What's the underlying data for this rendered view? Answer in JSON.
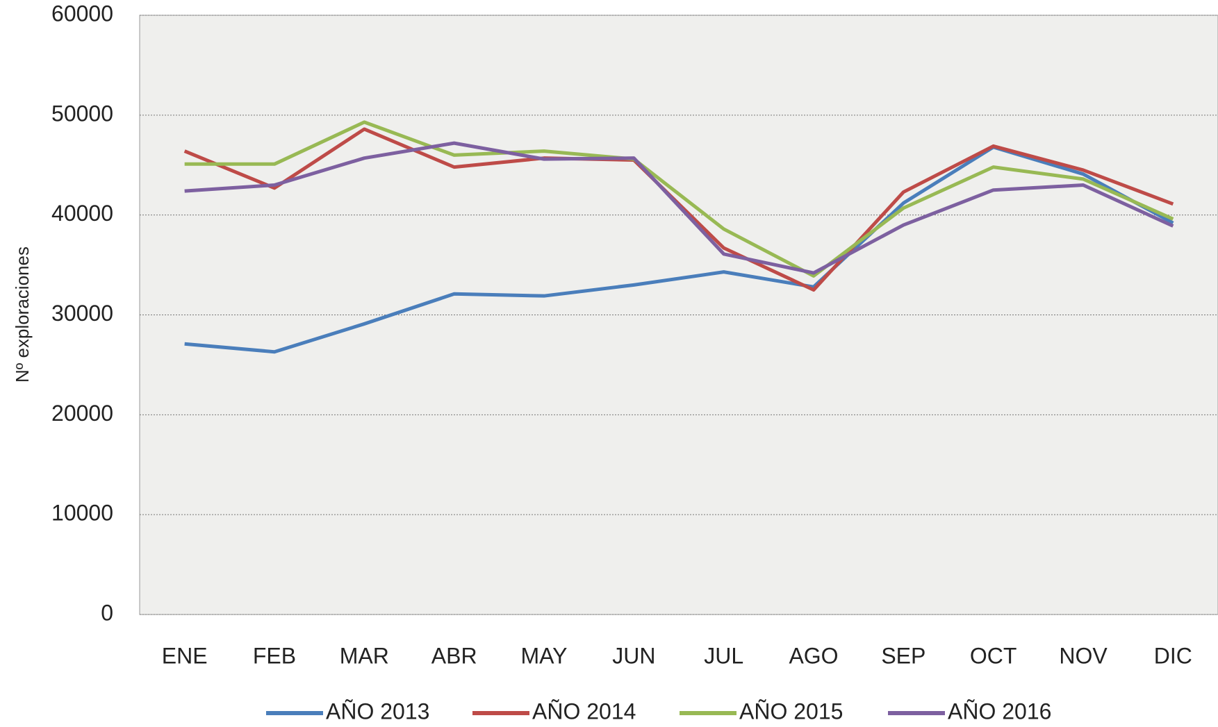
{
  "chart_data": {
    "type": "line",
    "y_label": "Nº exploraciones",
    "categories": [
      "ENE",
      "FEB",
      "MAR",
      "ABR",
      "MAY",
      "JUN",
      "JUL",
      "AGO",
      "SEP",
      "OCT",
      "NOV",
      "DIC"
    ],
    "series": [
      {
        "name": "AÑO 2013",
        "color": "#4a7ebb",
        "values": [
          27100,
          26300,
          29100,
          32100,
          31900,
          33000,
          34300,
          32800,
          41200,
          46800,
          44100,
          39200
        ]
      },
      {
        "name": "AÑO 2014",
        "color": "#be4b48",
        "values": [
          46400,
          42700,
          48600,
          44800,
          45700,
          45500,
          36700,
          32500,
          42300,
          46900,
          44500,
          41100
        ]
      },
      {
        "name": "AÑO 2015",
        "color": "#98b954",
        "values": [
          45100,
          45100,
          49300,
          46000,
          46400,
          45600,
          38600,
          33900,
          40700,
          44800,
          43600,
          39600
        ]
      },
      {
        "name": "AÑO 2016",
        "color": "#7d60a0",
        "values": [
          42400,
          43000,
          45700,
          47200,
          45600,
          45700,
          36100,
          34200,
          39000,
          42500,
          43000,
          38900
        ]
      }
    ],
    "ylim": [
      0,
      60000
    ],
    "yticks": [
      0,
      10000,
      20000,
      30000,
      40000,
      50000,
      60000
    ],
    "grid": true,
    "legend": "bottom"
  }
}
